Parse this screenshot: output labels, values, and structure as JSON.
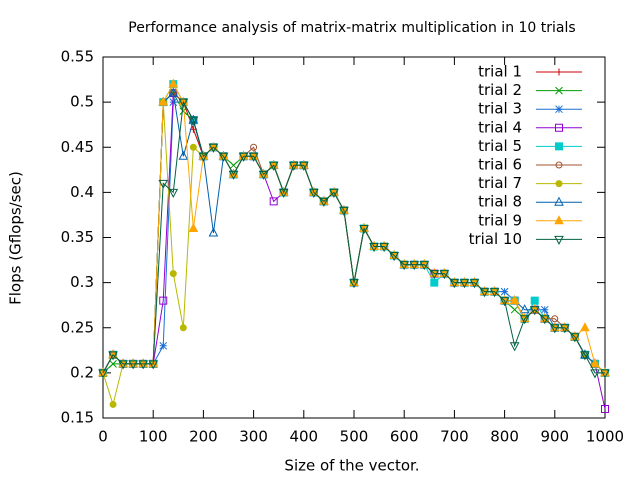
{
  "chart_data": {
    "type": "line",
    "title": "Performance analysis of matrix-matrix multiplication in 10 trials",
    "xlabel": "Size of the vector.",
    "ylabel": "Flops (Gflops/sec)",
    "x": [
      0,
      20,
      40,
      60,
      80,
      100,
      120,
      140,
      160,
      180,
      200,
      220,
      240,
      260,
      280,
      300,
      320,
      340,
      360,
      380,
      400,
      420,
      440,
      460,
      480,
      500,
      520,
      540,
      560,
      580,
      600,
      620,
      640,
      660,
      680,
      700,
      720,
      740,
      760,
      780,
      800,
      820,
      840,
      860,
      880,
      900,
      920,
      940,
      960,
      980,
      1000
    ],
    "xlim": [
      0,
      1000
    ],
    "xticks": [
      0,
      100,
      200,
      300,
      400,
      500,
      600,
      700,
      800,
      900,
      1000
    ],
    "ylim": [
      0.15,
      0.55
    ],
    "yticks": [
      0.15,
      0.2,
      0.25,
      0.3,
      0.35,
      0.4,
      0.45,
      0.5,
      0.55
    ],
    "grid": false,
    "legend": "top-right",
    "series": [
      {
        "name": "trial 1",
        "color": "#cc0000",
        "marker": "plus",
        "values": [
          0.2,
          0.22,
          0.21,
          0.21,
          0.21,
          0.21,
          0.5,
          0.51,
          0.5,
          0.47,
          0.44,
          0.45,
          0.44,
          0.42,
          0.44,
          0.44,
          0.42,
          0.43,
          0.4,
          0.43,
          0.43,
          0.4,
          0.39,
          0.4,
          0.38,
          0.3,
          0.36,
          0.34,
          0.34,
          0.33,
          0.32,
          0.32,
          0.32,
          0.31,
          0.31,
          0.3,
          0.3,
          0.3,
          0.29,
          0.29,
          0.28,
          0.28,
          0.26,
          0.27,
          0.26,
          0.25,
          0.25,
          0.24,
          0.22,
          0.21,
          0.2
        ]
      },
      {
        "name": "trial 2",
        "color": "#009e00",
        "marker": "cross",
        "values": [
          0.2,
          0.21,
          0.21,
          0.21,
          0.21,
          0.21,
          0.5,
          0.51,
          0.49,
          0.48,
          0.44,
          0.45,
          0.44,
          0.43,
          0.44,
          0.44,
          0.42,
          0.43,
          0.4,
          0.43,
          0.43,
          0.4,
          0.39,
          0.4,
          0.38,
          0.3,
          0.36,
          0.34,
          0.34,
          0.33,
          0.32,
          0.32,
          0.32,
          0.31,
          0.31,
          0.3,
          0.3,
          0.3,
          0.29,
          0.29,
          0.28,
          0.27,
          0.26,
          0.27,
          0.26,
          0.25,
          0.25,
          0.24,
          0.22,
          0.21,
          0.2
        ]
      },
      {
        "name": "trial 3",
        "color": "#1a6fd6",
        "marker": "star",
        "values": [
          0.2,
          0.22,
          0.21,
          0.21,
          0.21,
          0.21,
          0.23,
          0.5,
          0.5,
          0.48,
          0.44,
          0.45,
          0.44,
          0.42,
          0.44,
          0.44,
          0.42,
          0.43,
          0.4,
          0.43,
          0.43,
          0.4,
          0.39,
          0.4,
          0.38,
          0.3,
          0.36,
          0.34,
          0.34,
          0.33,
          0.32,
          0.32,
          0.32,
          0.31,
          0.31,
          0.3,
          0.3,
          0.3,
          0.29,
          0.29,
          0.29,
          0.28,
          0.26,
          0.27,
          0.27,
          0.25,
          0.25,
          0.24,
          0.22,
          0.21,
          0.2
        ]
      },
      {
        "name": "trial 4",
        "color": "#9400d3",
        "marker": "square-open",
        "values": [
          0.2,
          0.22,
          0.21,
          0.21,
          0.21,
          0.21,
          0.28,
          0.51,
          0.5,
          0.48,
          0.44,
          0.45,
          0.44,
          0.42,
          0.44,
          0.44,
          0.42,
          0.39,
          0.4,
          0.43,
          0.43,
          0.4,
          0.39,
          0.4,
          0.38,
          0.3,
          0.36,
          0.34,
          0.34,
          0.33,
          0.32,
          0.32,
          0.32,
          0.31,
          0.31,
          0.3,
          0.3,
          0.3,
          0.29,
          0.29,
          0.28,
          0.28,
          0.26,
          0.27,
          0.26,
          0.25,
          0.25,
          0.24,
          0.22,
          0.21,
          0.16
        ]
      },
      {
        "name": "trial 5",
        "color": "#00cccc",
        "marker": "square-filled",
        "values": [
          0.2,
          0.22,
          0.21,
          0.21,
          0.21,
          0.21,
          0.5,
          0.52,
          0.5,
          0.48,
          0.44,
          0.45,
          0.44,
          0.42,
          0.44,
          0.44,
          0.42,
          0.43,
          0.4,
          0.43,
          0.43,
          0.4,
          0.39,
          0.4,
          0.38,
          0.3,
          0.36,
          0.34,
          0.34,
          0.33,
          0.32,
          0.32,
          0.32,
          0.3,
          0.31,
          0.3,
          0.3,
          0.3,
          0.29,
          0.29,
          0.28,
          0.28,
          0.26,
          0.28,
          0.26,
          0.25,
          0.25,
          0.24,
          0.22,
          0.21,
          0.2
        ]
      },
      {
        "name": "trial 6",
        "color": "#a0522d",
        "marker": "circle-open",
        "values": [
          0.2,
          0.22,
          0.21,
          0.21,
          0.21,
          0.21,
          0.5,
          0.51,
          0.5,
          0.48,
          0.44,
          0.45,
          0.44,
          0.42,
          0.44,
          0.45,
          0.42,
          0.43,
          0.4,
          0.43,
          0.43,
          0.4,
          0.39,
          0.4,
          0.38,
          0.3,
          0.36,
          0.34,
          0.34,
          0.33,
          0.32,
          0.32,
          0.32,
          0.31,
          0.31,
          0.3,
          0.3,
          0.3,
          0.29,
          0.29,
          0.28,
          0.28,
          0.26,
          0.27,
          0.26,
          0.26,
          0.25,
          0.24,
          0.22,
          0.21,
          0.2
        ]
      },
      {
        "name": "trial 7",
        "color": "#b8b800",
        "marker": "circle-filled",
        "values": [
          0.2,
          0.165,
          0.21,
          0.21,
          0.21,
          0.21,
          0.5,
          0.31,
          0.25,
          0.45,
          0.44,
          0.45,
          0.44,
          0.42,
          0.44,
          0.44,
          0.42,
          0.43,
          0.4,
          0.43,
          0.43,
          0.4,
          0.39,
          0.4,
          0.38,
          0.3,
          0.36,
          0.34,
          0.34,
          0.33,
          0.32,
          0.32,
          0.32,
          0.31,
          0.31,
          0.3,
          0.3,
          0.3,
          0.29,
          0.29,
          0.28,
          0.28,
          0.26,
          0.27,
          0.26,
          0.25,
          0.25,
          0.24,
          0.22,
          0.21,
          0.2
        ]
      },
      {
        "name": "trial 8",
        "color": "#0060ad",
        "marker": "triangle-open",
        "values": [
          0.2,
          0.22,
          0.21,
          0.21,
          0.21,
          0.21,
          0.5,
          0.51,
          0.44,
          0.48,
          0.44,
          0.355,
          0.44,
          0.42,
          0.44,
          0.44,
          0.42,
          0.43,
          0.4,
          0.43,
          0.43,
          0.4,
          0.39,
          0.4,
          0.38,
          0.3,
          0.36,
          0.34,
          0.34,
          0.33,
          0.32,
          0.32,
          0.32,
          0.31,
          0.31,
          0.3,
          0.3,
          0.3,
          0.29,
          0.29,
          0.28,
          0.28,
          0.27,
          0.27,
          0.26,
          0.25,
          0.25,
          0.24,
          0.22,
          0.21,
          0.2
        ]
      },
      {
        "name": "trial 9",
        "color": "#ffa500",
        "marker": "triangle-filled",
        "values": [
          0.2,
          0.22,
          0.21,
          0.21,
          0.21,
          0.21,
          0.5,
          0.52,
          0.5,
          0.36,
          0.44,
          0.45,
          0.44,
          0.42,
          0.44,
          0.44,
          0.42,
          0.43,
          0.4,
          0.43,
          0.43,
          0.4,
          0.39,
          0.4,
          0.38,
          0.3,
          0.36,
          0.34,
          0.34,
          0.33,
          0.32,
          0.32,
          0.32,
          0.31,
          0.31,
          0.3,
          0.3,
          0.3,
          0.29,
          0.29,
          0.28,
          0.28,
          0.26,
          0.27,
          0.26,
          0.25,
          0.25,
          0.24,
          0.25,
          0.21,
          0.2
        ]
      },
      {
        "name": "trial 10",
        "color": "#006040",
        "marker": "triangle-down-open",
        "values": [
          0.2,
          0.22,
          0.21,
          0.21,
          0.21,
          0.21,
          0.41,
          0.4,
          0.5,
          0.48,
          0.44,
          0.45,
          0.44,
          0.42,
          0.44,
          0.44,
          0.42,
          0.43,
          0.4,
          0.43,
          0.43,
          0.4,
          0.39,
          0.4,
          0.38,
          0.3,
          0.36,
          0.34,
          0.34,
          0.33,
          0.32,
          0.32,
          0.32,
          0.31,
          0.31,
          0.3,
          0.3,
          0.3,
          0.29,
          0.29,
          0.28,
          0.23,
          0.26,
          0.27,
          0.26,
          0.25,
          0.25,
          0.24,
          0.22,
          0.2,
          0.2
        ]
      }
    ]
  }
}
